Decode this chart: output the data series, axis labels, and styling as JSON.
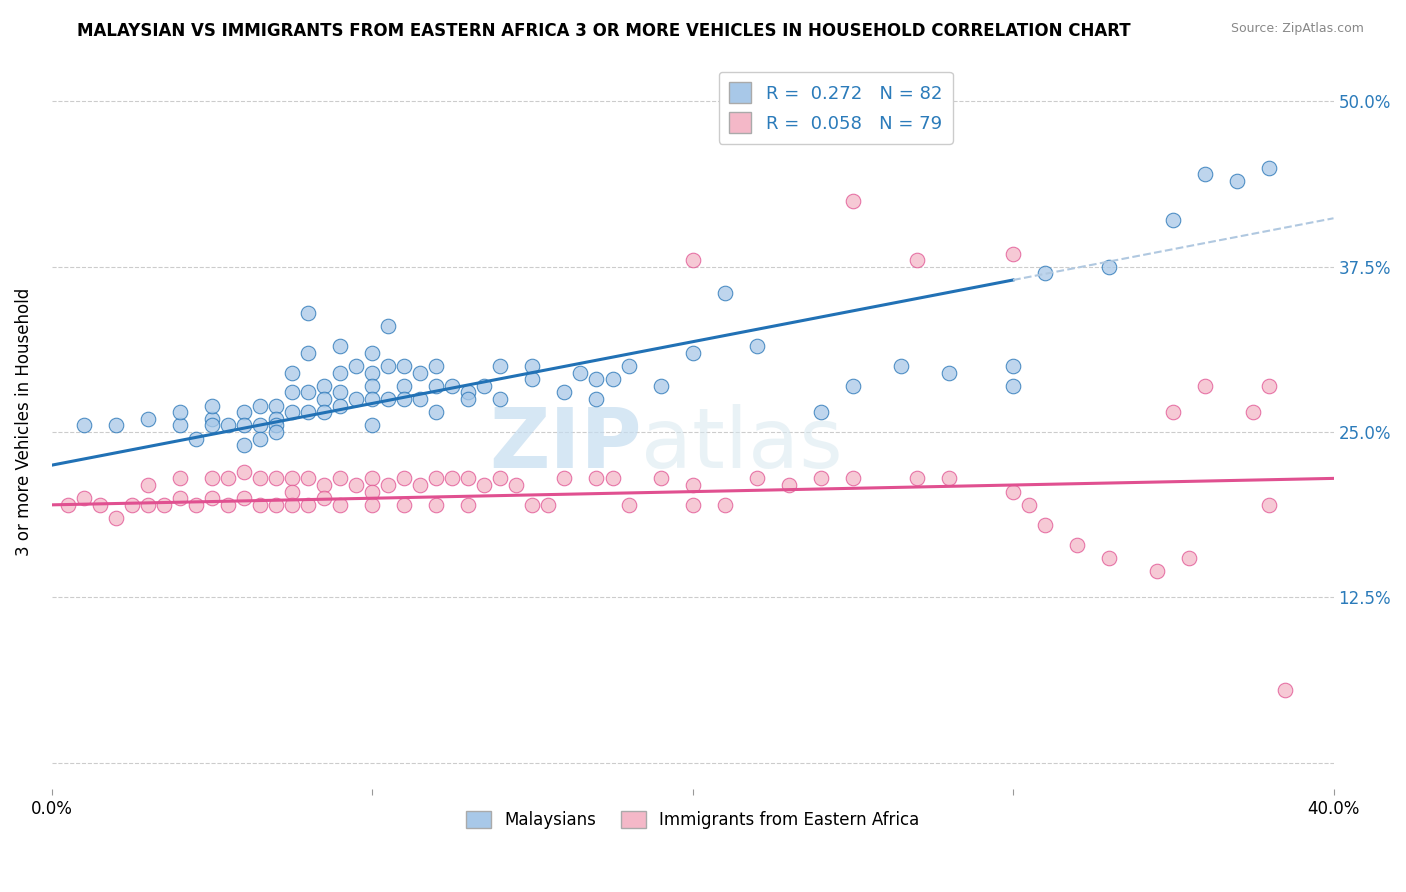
{
  "title": "MALAYSIAN VS IMMIGRANTS FROM EASTERN AFRICA 3 OR MORE VEHICLES IN HOUSEHOLD CORRELATION CHART",
  "source": "Source: ZipAtlas.com",
  "ylabel": "3 or more Vehicles in Household",
  "xlim": [
    0.0,
    0.4
  ],
  "ylim": [
    -0.02,
    0.535
  ],
  "color_blue": "#a8c8e8",
  "color_pink": "#f4b8c8",
  "color_line_blue": "#2171b5",
  "color_line_pink": "#e05090",
  "color_dashed": "#b0c8e0",
  "watermark_zip": "ZIP",
  "watermark_atlas": "atlas",
  "blue_line_x0": 0.0,
  "blue_line_y0": 0.225,
  "blue_line_x1": 0.3,
  "blue_line_y1": 0.365,
  "pink_line_x0": 0.0,
  "pink_line_y0": 0.195,
  "pink_line_x1": 0.4,
  "pink_line_y1": 0.215,
  "dashed_line_x0": 0.3,
  "dashed_line_x1": 0.4,
  "malaysian_x": [
    0.01,
    0.02,
    0.03,
    0.04,
    0.04,
    0.045,
    0.05,
    0.05,
    0.05,
    0.055,
    0.06,
    0.06,
    0.06,
    0.065,
    0.065,
    0.065,
    0.07,
    0.07,
    0.07,
    0.07,
    0.075,
    0.075,
    0.075,
    0.08,
    0.08,
    0.08,
    0.08,
    0.085,
    0.085,
    0.085,
    0.09,
    0.09,
    0.09,
    0.09,
    0.095,
    0.095,
    0.1,
    0.1,
    0.1,
    0.1,
    0.1,
    0.105,
    0.105,
    0.105,
    0.11,
    0.11,
    0.11,
    0.115,
    0.115,
    0.12,
    0.12,
    0.12,
    0.125,
    0.13,
    0.13,
    0.135,
    0.14,
    0.14,
    0.15,
    0.15,
    0.16,
    0.165,
    0.17,
    0.17,
    0.175,
    0.18,
    0.19,
    0.2,
    0.21,
    0.22,
    0.24,
    0.25,
    0.265,
    0.28,
    0.3,
    0.3,
    0.31,
    0.33,
    0.35,
    0.36,
    0.37,
    0.38
  ],
  "malaysian_y": [
    0.255,
    0.255,
    0.26,
    0.255,
    0.265,
    0.245,
    0.26,
    0.255,
    0.27,
    0.255,
    0.265,
    0.255,
    0.24,
    0.27,
    0.255,
    0.245,
    0.27,
    0.26,
    0.255,
    0.25,
    0.295,
    0.28,
    0.265,
    0.34,
    0.31,
    0.28,
    0.265,
    0.285,
    0.275,
    0.265,
    0.315,
    0.295,
    0.28,
    0.27,
    0.3,
    0.275,
    0.31,
    0.295,
    0.285,
    0.275,
    0.255,
    0.33,
    0.3,
    0.275,
    0.3,
    0.285,
    0.275,
    0.295,
    0.275,
    0.3,
    0.285,
    0.265,
    0.285,
    0.28,
    0.275,
    0.285,
    0.3,
    0.275,
    0.3,
    0.29,
    0.28,
    0.295,
    0.29,
    0.275,
    0.29,
    0.3,
    0.285,
    0.31,
    0.355,
    0.315,
    0.265,
    0.285,
    0.3,
    0.295,
    0.3,
    0.285,
    0.37,
    0.375,
    0.41,
    0.445,
    0.44,
    0.45
  ],
  "eastern_africa_x": [
    0.005,
    0.01,
    0.015,
    0.02,
    0.025,
    0.03,
    0.03,
    0.035,
    0.04,
    0.04,
    0.045,
    0.05,
    0.05,
    0.055,
    0.055,
    0.06,
    0.06,
    0.065,
    0.065,
    0.07,
    0.07,
    0.075,
    0.075,
    0.075,
    0.08,
    0.08,
    0.085,
    0.085,
    0.09,
    0.09,
    0.095,
    0.1,
    0.1,
    0.1,
    0.105,
    0.11,
    0.11,
    0.115,
    0.12,
    0.12,
    0.125,
    0.13,
    0.13,
    0.135,
    0.14,
    0.145,
    0.15,
    0.155,
    0.16,
    0.17,
    0.175,
    0.18,
    0.19,
    0.2,
    0.2,
    0.21,
    0.22,
    0.23,
    0.24,
    0.25,
    0.27,
    0.28,
    0.3,
    0.305,
    0.31,
    0.32,
    0.33,
    0.345,
    0.355,
    0.36,
    0.375,
    0.38,
    0.385,
    0.2,
    0.25,
    0.27,
    0.3,
    0.35,
    0.38
  ],
  "eastern_africa_y": [
    0.195,
    0.2,
    0.195,
    0.185,
    0.195,
    0.195,
    0.21,
    0.195,
    0.2,
    0.215,
    0.195,
    0.215,
    0.2,
    0.215,
    0.195,
    0.22,
    0.2,
    0.215,
    0.195,
    0.215,
    0.195,
    0.215,
    0.205,
    0.195,
    0.215,
    0.195,
    0.21,
    0.2,
    0.215,
    0.195,
    0.21,
    0.215,
    0.205,
    0.195,
    0.21,
    0.215,
    0.195,
    0.21,
    0.215,
    0.195,
    0.215,
    0.215,
    0.195,
    0.21,
    0.215,
    0.21,
    0.195,
    0.195,
    0.215,
    0.215,
    0.215,
    0.195,
    0.215,
    0.21,
    0.195,
    0.195,
    0.215,
    0.21,
    0.215,
    0.215,
    0.215,
    0.215,
    0.205,
    0.195,
    0.18,
    0.165,
    0.155,
    0.145,
    0.155,
    0.285,
    0.265,
    0.195,
    0.055,
    0.38,
    0.425,
    0.38,
    0.385,
    0.265,
    0.285
  ]
}
